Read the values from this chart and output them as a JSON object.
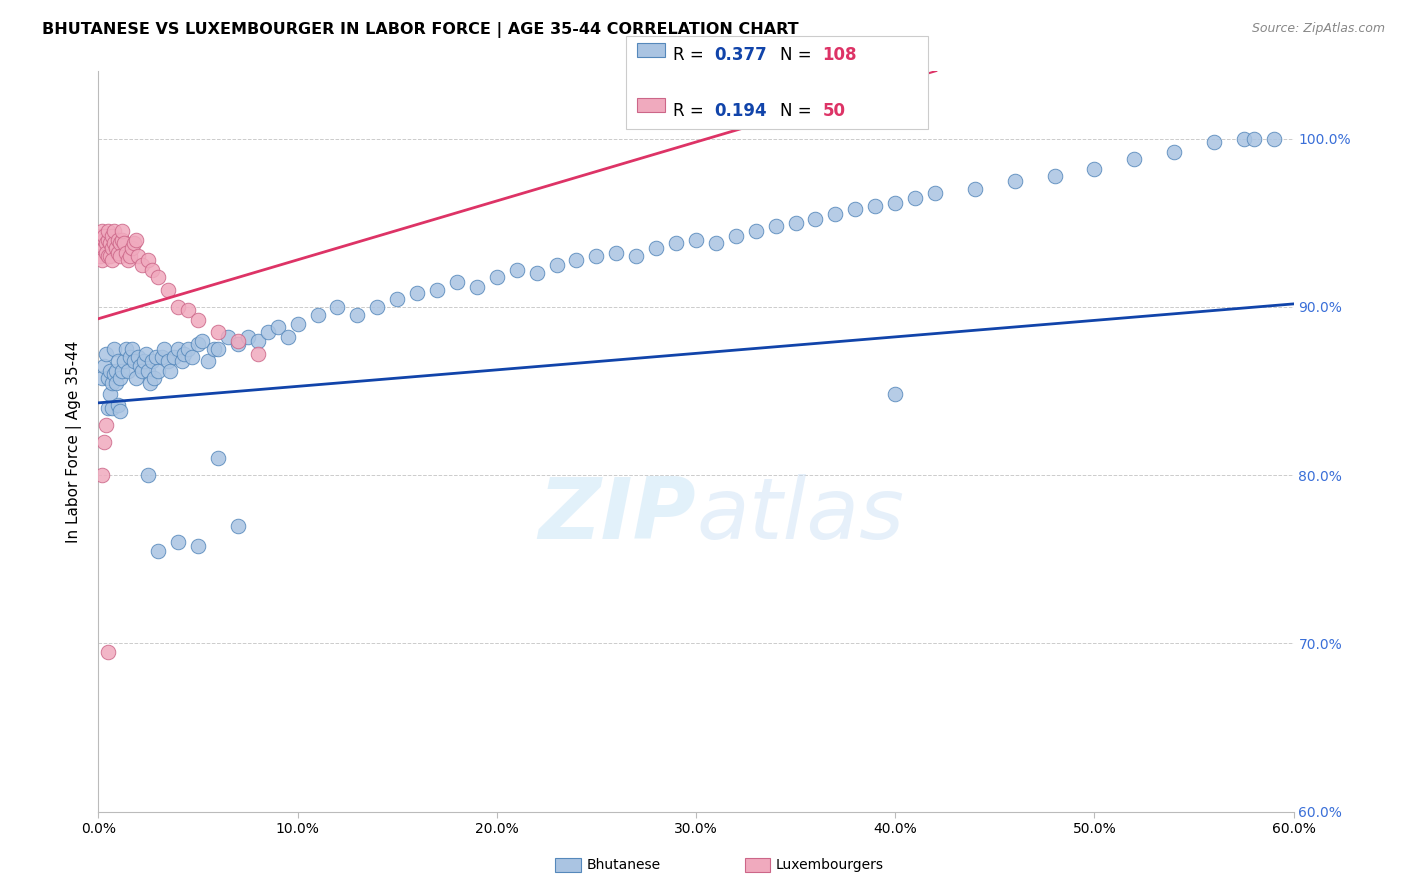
{
  "title": "BHUTANESE VS LUXEMBOURGER IN LABOR FORCE | AGE 35-44 CORRELATION CHART",
  "source": "Source: ZipAtlas.com",
  "ylabel": "In Labor Force | Age 35-44",
  "xlim": [
    0.0,
    0.6
  ],
  "ylim": [
    0.6,
    1.04
  ],
  "ytick_labels": [
    "60.0%",
    "70.0%",
    "80.0%",
    "90.0%",
    "100.0%"
  ],
  "ytick_values": [
    0.6,
    0.7,
    0.8,
    0.9,
    1.0
  ],
  "xtick_labels": [
    "0.0%",
    "10.0%",
    "20.0%",
    "30.0%",
    "40.0%",
    "50.0%",
    "60.0%"
  ],
  "xtick_values": [
    0.0,
    0.1,
    0.2,
    0.3,
    0.4,
    0.5,
    0.6
  ],
  "blue_R": 0.377,
  "blue_N": 108,
  "pink_R": 0.194,
  "pink_N": 50,
  "blue_color": "#aac4e2",
  "blue_edge": "#5588bb",
  "pink_color": "#f0aabe",
  "pink_edge": "#cc6688",
  "trend_blue": "#1144aa",
  "trend_pink": "#dd3366",
  "watermark_color": "#d0e8f8",
  "blue_trend_intercept": 0.843,
  "blue_trend_slope": 0.098,
  "pink_trend_intercept": 0.893,
  "pink_trend_slope": 0.35,
  "blue_scatter_x": [
    0.002,
    0.003,
    0.004,
    0.005,
    0.005,
    0.006,
    0.006,
    0.007,
    0.007,
    0.008,
    0.008,
    0.009,
    0.009,
    0.01,
    0.01,
    0.011,
    0.011,
    0.012,
    0.013,
    0.014,
    0.015,
    0.016,
    0.017,
    0.018,
    0.019,
    0.02,
    0.021,
    0.022,
    0.023,
    0.024,
    0.025,
    0.026,
    0.027,
    0.028,
    0.029,
    0.03,
    0.032,
    0.033,
    0.035,
    0.036,
    0.038,
    0.04,
    0.042,
    0.043,
    0.045,
    0.047,
    0.05,
    0.052,
    0.055,
    0.058,
    0.06,
    0.065,
    0.07,
    0.075,
    0.08,
    0.085,
    0.09,
    0.095,
    0.1,
    0.11,
    0.12,
    0.13,
    0.14,
    0.15,
    0.16,
    0.17,
    0.18,
    0.19,
    0.2,
    0.21,
    0.22,
    0.23,
    0.24,
    0.25,
    0.26,
    0.27,
    0.28,
    0.29,
    0.3,
    0.31,
    0.32,
    0.33,
    0.34,
    0.35,
    0.36,
    0.37,
    0.38,
    0.39,
    0.4,
    0.41,
    0.42,
    0.44,
    0.46,
    0.48,
    0.5,
    0.52,
    0.54,
    0.56,
    0.575,
    0.58,
    0.59,
    0.025,
    0.03,
    0.04,
    0.05,
    0.06,
    0.07,
    0.4
  ],
  "blue_scatter_y": [
    0.858,
    0.865,
    0.872,
    0.84,
    0.858,
    0.848,
    0.862,
    0.855,
    0.84,
    0.86,
    0.875,
    0.862,
    0.855,
    0.868,
    0.842,
    0.858,
    0.838,
    0.862,
    0.868,
    0.875,
    0.862,
    0.87,
    0.875,
    0.868,
    0.858,
    0.87,
    0.865,
    0.862,
    0.868,
    0.872,
    0.862,
    0.855,
    0.868,
    0.858,
    0.87,
    0.862,
    0.87,
    0.875,
    0.868,
    0.862,
    0.87,
    0.875,
    0.868,
    0.872,
    0.875,
    0.87,
    0.878,
    0.88,
    0.868,
    0.875,
    0.875,
    0.882,
    0.878,
    0.882,
    0.88,
    0.885,
    0.888,
    0.882,
    0.89,
    0.895,
    0.9,
    0.895,
    0.9,
    0.905,
    0.908,
    0.91,
    0.915,
    0.912,
    0.918,
    0.922,
    0.92,
    0.925,
    0.928,
    0.93,
    0.932,
    0.93,
    0.935,
    0.938,
    0.94,
    0.938,
    0.942,
    0.945,
    0.948,
    0.95,
    0.952,
    0.955,
    0.958,
    0.96,
    0.962,
    0.965,
    0.968,
    0.97,
    0.975,
    0.978,
    0.982,
    0.988,
    0.992,
    0.998,
    1.0,
    1.0,
    1.0,
    0.8,
    0.755,
    0.76,
    0.758,
    0.81,
    0.77,
    0.848
  ],
  "pink_scatter_x": [
    0.001,
    0.001,
    0.002,
    0.002,
    0.002,
    0.003,
    0.003,
    0.003,
    0.004,
    0.004,
    0.005,
    0.005,
    0.005,
    0.006,
    0.006,
    0.007,
    0.007,
    0.007,
    0.008,
    0.008,
    0.009,
    0.01,
    0.01,
    0.011,
    0.011,
    0.012,
    0.012,
    0.013,
    0.014,
    0.015,
    0.016,
    0.017,
    0.018,
    0.019,
    0.02,
    0.022,
    0.025,
    0.027,
    0.03,
    0.035,
    0.04,
    0.045,
    0.05,
    0.06,
    0.07,
    0.08,
    0.003,
    0.004,
    0.002,
    0.005
  ],
  "pink_scatter_y": [
    0.93,
    0.942,
    0.945,
    0.938,
    0.928,
    0.94,
    0.935,
    0.942,
    0.938,
    0.932,
    0.93,
    0.94,
    0.945,
    0.938,
    0.93,
    0.935,
    0.942,
    0.928,
    0.938,
    0.945,
    0.935,
    0.932,
    0.94,
    0.938,
    0.93,
    0.94,
    0.945,
    0.938,
    0.932,
    0.928,
    0.93,
    0.935,
    0.938,
    0.94,
    0.93,
    0.925,
    0.928,
    0.922,
    0.918,
    0.91,
    0.9,
    0.898,
    0.892,
    0.885,
    0.88,
    0.872,
    0.82,
    0.83,
    0.8,
    0.695
  ]
}
